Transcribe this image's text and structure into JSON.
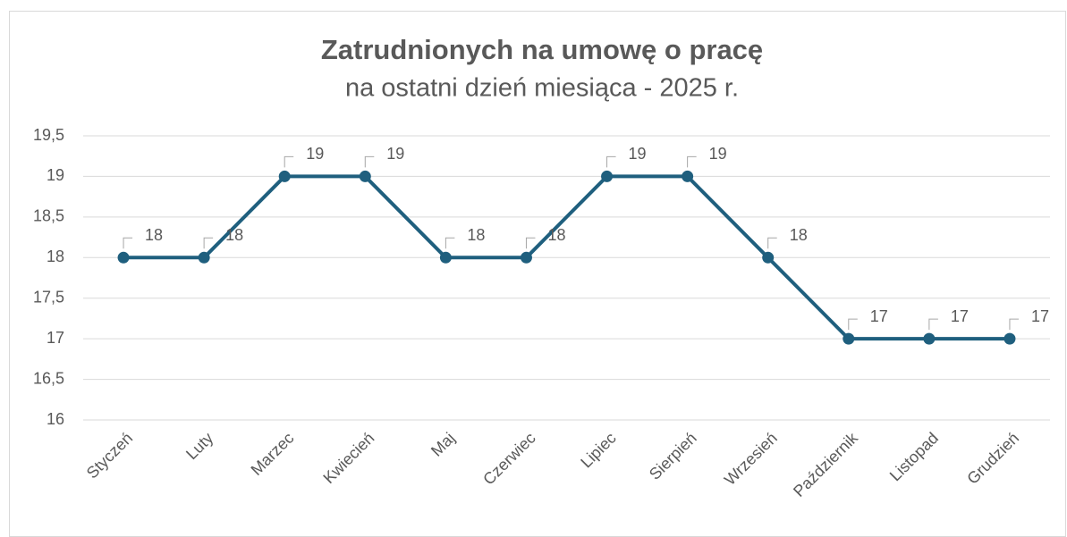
{
  "chart_data": {
    "type": "line",
    "title": "Zatrudnionych na umowę o pracę",
    "subtitle": "na ostatni dzień miesiąca - 2025 r.",
    "categories": [
      "Styczeń",
      "Luty",
      "Marzec",
      "Kwiecień",
      "Maj",
      "Czerwiec",
      "Lipiec",
      "Sierpień",
      "Wrzesień",
      "Październik",
      "Listopad",
      "Grudzień"
    ],
    "values": [
      18,
      18,
      19,
      19,
      18,
      18,
      19,
      19,
      18,
      17,
      17,
      17
    ],
    "color": "#1f5f7e",
    "ylim": [
      16,
      19.5
    ],
    "yticks": [
      16,
      {
        "value": 16.5,
        "label": "16,5"
      },
      17,
      {
        "value": 17.5,
        "label": "17,5"
      },
      18,
      {
        "value": 18.5,
        "label": "18,5"
      },
      19,
      {
        "value": 19.5,
        "label": "19,5"
      }
    ],
    "grid": true
  }
}
